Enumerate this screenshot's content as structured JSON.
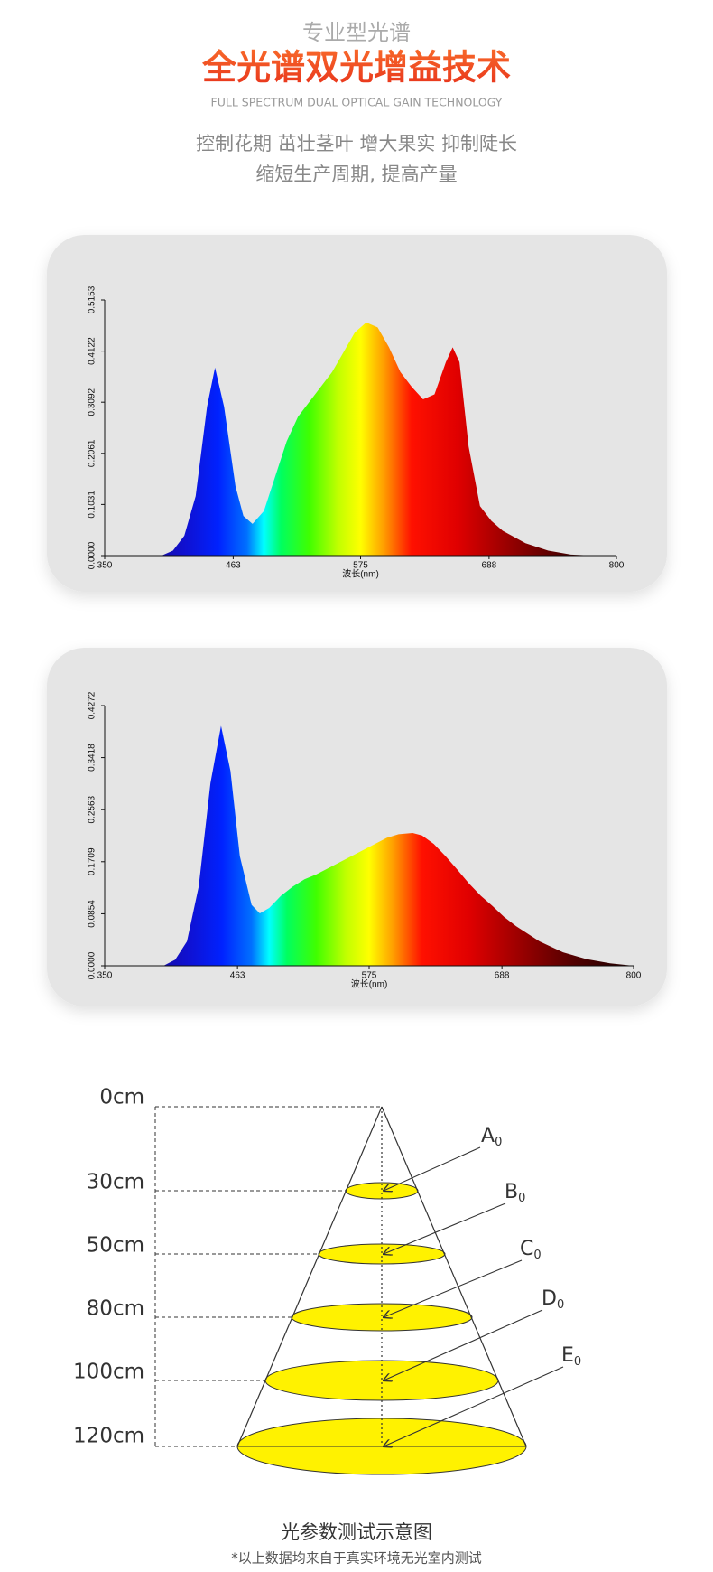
{
  "header": {
    "kicker": "专业型光谱",
    "title": "全光谱双光增益技术",
    "english": "FULL SPECTRUM DUAL OPTICAL GAIN TECHNOLOGY",
    "lines": [
      "控制花期 茁壮茎叶 增大果实 抑制陡长",
      "缩短生产周期, 提高产量"
    ]
  },
  "chart_data": [
    {
      "type": "area",
      "x_label": "波长(nm)",
      "x": [
        350,
        400,
        410,
        420,
        430,
        440,
        447,
        455,
        465,
        472,
        480,
        490,
        500,
        510,
        520,
        530,
        540,
        550,
        560,
        570,
        580,
        590,
        600,
        610,
        620,
        630,
        640,
        650,
        656,
        662,
        670,
        680,
        690,
        700,
        720,
        740,
        760,
        780,
        800
      ],
      "values": [
        0,
        0,
        0.01,
        0.04,
        0.12,
        0.3,
        0.379,
        0.3,
        0.14,
        0.08,
        0.064,
        0.09,
        0.16,
        0.23,
        0.28,
        0.31,
        0.34,
        0.37,
        0.41,
        0.45,
        0.47,
        0.46,
        0.42,
        0.37,
        0.34,
        0.315,
        0.325,
        0.39,
        0.42,
        0.39,
        0.22,
        0.1,
        0.07,
        0.05,
        0.025,
        0.01,
        0.002,
        0,
        0
      ],
      "xlim": [
        350,
        800
      ],
      "xticks": [
        350,
        463,
        575,
        688,
        800
      ],
      "ylim": [
        0,
        0.5153
      ],
      "yticks": [
        {
          "value": 0,
          "label": "0.0000"
        },
        0.1031,
        0.2061,
        0.3092,
        0.4122,
        0.5153
      ]
    },
    {
      "type": "area",
      "x_label": "波长(nm)",
      "x": [
        350,
        400,
        410,
        420,
        430,
        440,
        449,
        457,
        465,
        475,
        482,
        490,
        500,
        510,
        520,
        530,
        540,
        550,
        560,
        570,
        580,
        590,
        600,
        612,
        620,
        630,
        640,
        650,
        660,
        670,
        680,
        690,
        700,
        720,
        740,
        760,
        780,
        800
      ],
      "values": [
        0,
        0,
        0.01,
        0.04,
        0.13,
        0.3,
        0.394,
        0.32,
        0.18,
        0.1,
        0.086,
        0.095,
        0.115,
        0.13,
        0.142,
        0.15,
        0.16,
        0.17,
        0.18,
        0.19,
        0.2,
        0.21,
        0.216,
        0.218,
        0.214,
        0.2,
        0.18,
        0.158,
        0.135,
        0.115,
        0.098,
        0.08,
        0.065,
        0.04,
        0.022,
        0.011,
        0.004,
        0
      ],
      "xlim": [
        350,
        800
      ],
      "xticks": [
        350,
        463,
        575,
        688,
        800
      ],
      "ylim": [
        0,
        0.4272
      ],
      "yticks": [
        {
          "value": 0,
          "label": "0.0000"
        },
        0.0854,
        0.1709,
        0.2563,
        0.3418,
        0.4272
      ]
    }
  ],
  "diagram": {
    "distances": [
      "0cm",
      "30cm",
      "50cm",
      "80cm",
      "100cm",
      "120cm"
    ],
    "labels": [
      {
        "letter": "A",
        "sub": "0"
      },
      {
        "letter": "B",
        "sub": "0"
      },
      {
        "letter": "C",
        "sub": "0"
      },
      {
        "letter": "D",
        "sub": "0"
      },
      {
        "letter": "E",
        "sub": "0"
      }
    ],
    "caption": "光参数测试示意图",
    "note": "*以上数据均来自于真实环境无光室内测试"
  }
}
